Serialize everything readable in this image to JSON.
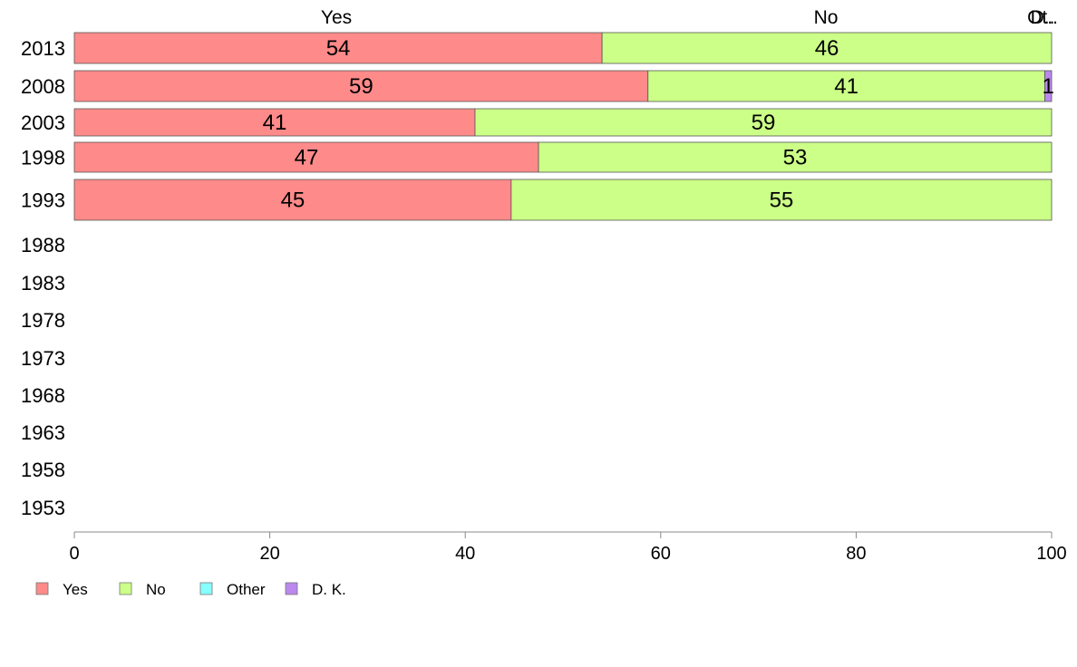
{
  "chart_data": {
    "type": "bar",
    "orientation": "horizontal",
    "stacked": true,
    "categories": [
      "2013",
      "2008",
      "2003",
      "1998",
      "1993",
      "1988",
      "1983",
      "1978",
      "1973",
      "1968",
      "1963",
      "1958",
      "1953"
    ],
    "series": [
      {
        "name": "Yes",
        "color": "#ff8a8a",
        "values": [
          54,
          58.7,
          41,
          47.5,
          44.7,
          null,
          null,
          null,
          null,
          null,
          null,
          null,
          null
        ],
        "labels": [
          "54",
          "59",
          "41",
          "47",
          "45",
          "",
          "",
          "",
          "",
          "",
          "",
          "",
          ""
        ]
      },
      {
        "name": "No",
        "color": "#ccff88",
        "values": [
          46,
          40.6,
          59,
          52.5,
          55.3,
          null,
          null,
          null,
          null,
          null,
          null,
          null,
          null
        ],
        "labels": [
          "46",
          "41",
          "59",
          "53",
          "55",
          "",
          "",
          "",
          "",
          "",
          "",
          "",
          ""
        ]
      },
      {
        "name": "Other",
        "color": "#88ffff",
        "values": [
          0,
          0,
          0,
          0,
          0,
          null,
          null,
          null,
          null,
          null,
          null,
          null,
          null
        ],
        "labels": [
          "",
          "",
          "",
          "",
          "",
          "",
          "",
          "",
          "",
          "",
          "",
          "",
          ""
        ]
      },
      {
        "name": "D. K.",
        "color": "#bb88ee",
        "values": [
          0,
          0.7,
          0,
          0,
          0,
          null,
          null,
          null,
          null,
          null,
          null,
          null,
          null
        ],
        "labels": [
          "",
          "1",
          "",
          "",
          "",
          "",
          "",
          "",
          "",
          "",
          "",
          "",
          ""
        ]
      }
    ],
    "top_labels": [
      "Yes",
      "No",
      "D..",
      "Ot.."
    ],
    "x_ticks": [
      "0",
      "20",
      "40",
      "60",
      "80",
      "100"
    ],
    "xlim": [
      0,
      100
    ],
    "title": "",
    "xlabel": "",
    "ylabel": "",
    "grid": false,
    "legend_position": "bottom-left"
  }
}
